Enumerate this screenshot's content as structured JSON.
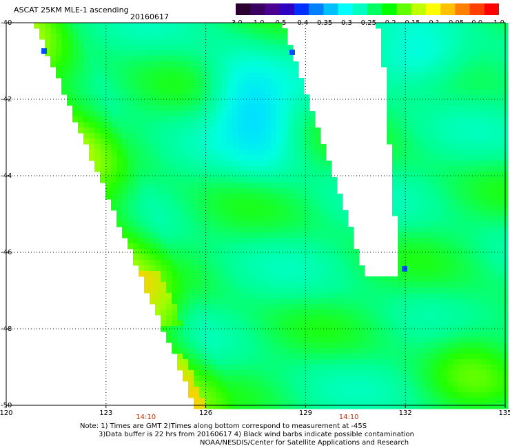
{
  "header": {
    "title": "ASCAT 25KM MLE-1 ascending",
    "date": "20160617"
  },
  "colorbar": {
    "tick_labels": [
      "-3.0",
      "-1.0",
      "-0.5",
      "-0.4",
      "-0.35",
      "-0.3",
      "-0.25",
      "-0.2",
      "-0.15",
      "-0.1",
      "-0.05",
      "0.0",
      "1.0"
    ],
    "colors": [
      "#2a0030",
      "#3a0060",
      "#4a0090",
      "#3000c0",
      "#0030ff",
      "#0080ff",
      "#00c0ff",
      "#00ffff",
      "#00ffc0",
      "#00ff60",
      "#00ff00",
      "#60ff00",
      "#c0ff00",
      "#ffff00",
      "#ffc000",
      "#ff8000",
      "#ff4000",
      "#ff0000"
    ]
  },
  "map": {
    "x_axis": {
      "ticks": [
        "120",
        "123",
        "126",
        "129",
        "132",
        "135"
      ],
      "lon_range": [
        120,
        135
      ]
    },
    "y_axis": {
      "ticks": [
        "-40",
        "-42",
        "-44",
        "-46",
        "-48",
        "-50"
      ],
      "lat_range": [
        -40,
        -50
      ]
    },
    "time_labels": [
      {
        "text": "14:10",
        "lon": 124.2
      },
      {
        "text": "14:10",
        "lon": 130.3
      }
    ],
    "time_label_color": "#c03000"
  },
  "notes": {
    "line1": "Note: 1) Times are GMT 2)Times along bottom correspond to measurement at -45S",
    "line2": "3)Data buffer is 22 hrs from 20160617 4) Black wind barbs indicate possible contamination",
    "line3": "NOAA/NESDIS/Center for Satellite Applications and Research"
  }
}
